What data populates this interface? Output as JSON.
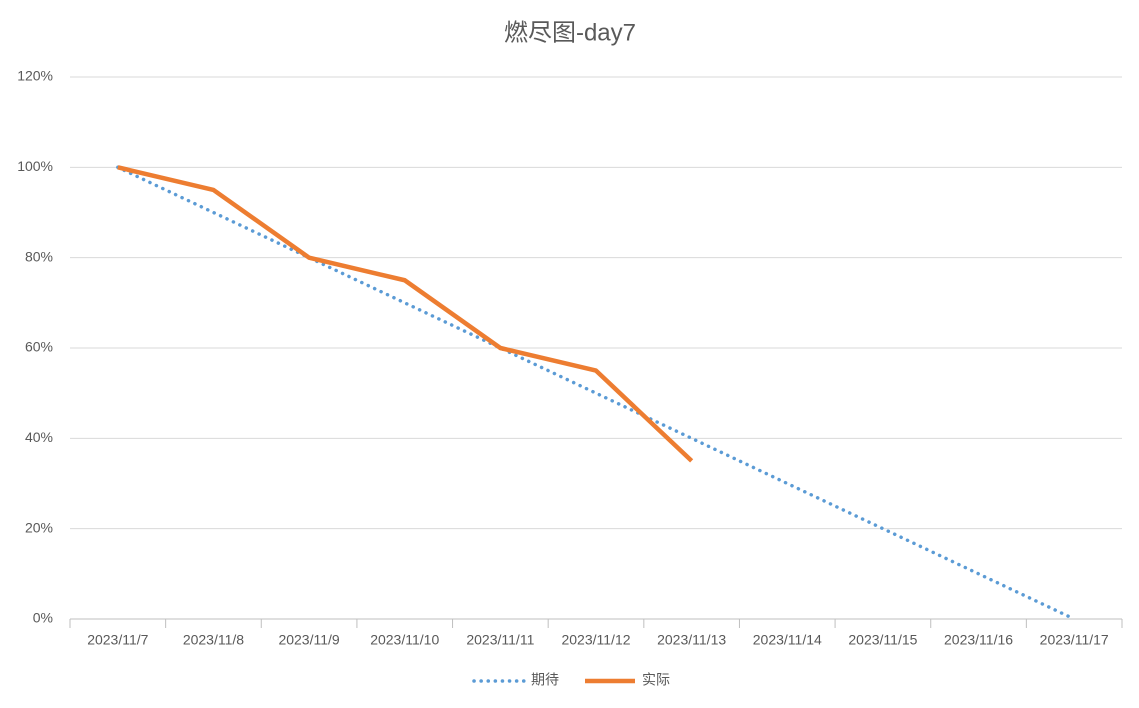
{
  "chart_data": {
    "type": "line",
    "title": "燃尽图-day7",
    "categories": [
      "2023/11/7",
      "2023/11/8",
      "2023/11/9",
      "2023/11/10",
      "2023/11/11",
      "2023/11/12",
      "2023/11/13",
      "2023/11/14",
      "2023/11/15",
      "2023/11/16",
      "2023/11/17"
    ],
    "series": [
      {
        "name": "期待",
        "color": "#5b9bd5",
        "style": "dotted",
        "values": [
          100,
          90,
          80,
          70,
          60,
          50,
          40,
          30,
          20,
          10,
          0
        ]
      },
      {
        "name": "实际",
        "color": "#ed7d31",
        "style": "solid",
        "values": [
          100,
          95,
          80,
          75,
          60,
          55,
          35,
          null,
          null,
          null,
          null
        ]
      }
    ],
    "ylim": [
      0,
      120
    ],
    "yticks": [
      {
        "value": 0,
        "label": "0%"
      },
      {
        "value": 20,
        "label": "20%"
      },
      {
        "value": 40,
        "label": "40%"
      },
      {
        "value": 60,
        "label": "60%"
      },
      {
        "value": 80,
        "label": "80%"
      },
      {
        "value": 100,
        "label": "100%"
      },
      {
        "value": 120,
        "label": "120%"
      }
    ],
    "grid": true,
    "legend": "bottom"
  }
}
